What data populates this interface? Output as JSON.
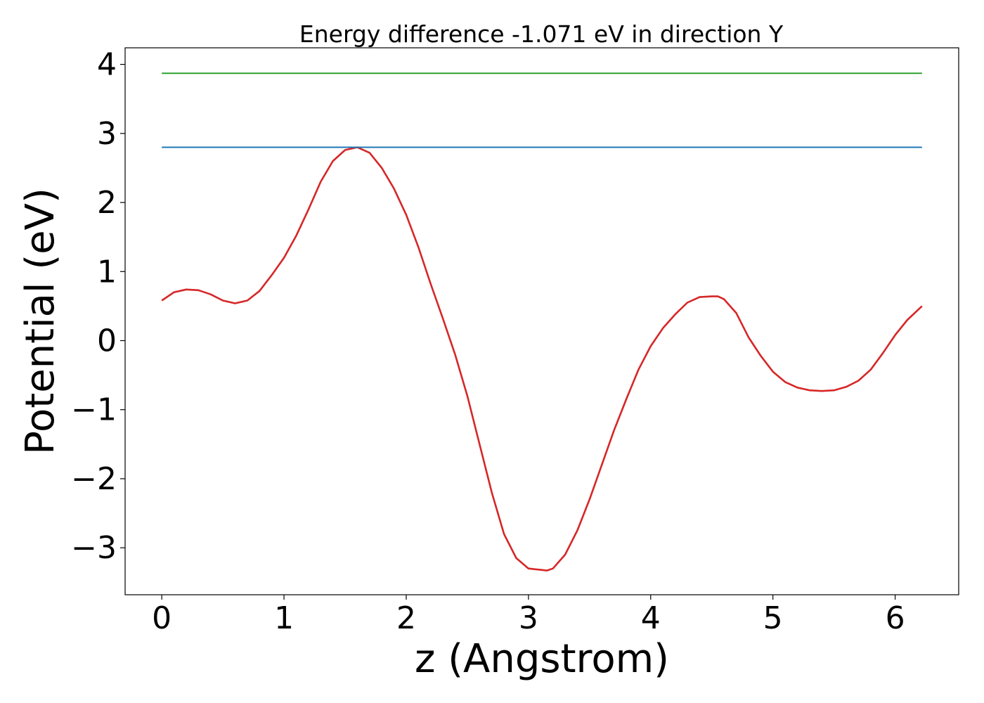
{
  "chart_data": {
    "type": "line",
    "title": "Energy difference -1.071 eV in direction Y",
    "xlabel": "z (Angstrom)",
    "ylabel": "Potential (eV)",
    "xlim": [
      -0.3,
      6.52
    ],
    "ylim": [
      -3.68,
      4.24
    ],
    "xticks": [
      0,
      1,
      2,
      3,
      4,
      5,
      6
    ],
    "xtick_labels": [
      "0",
      "1",
      "2",
      "3",
      "4",
      "5",
      "6"
    ],
    "yticks": [
      -3,
      -2,
      -1,
      0,
      1,
      2,
      3,
      4
    ],
    "ytick_labels": [
      "−3",
      "−2",
      "−1",
      "0",
      "1",
      "2",
      "3",
      "4"
    ],
    "grid": false,
    "series": [
      {
        "color": "#d62728",
        "x": [
          0.0,
          0.1,
          0.2,
          0.3,
          0.4,
          0.5,
          0.6,
          0.7,
          0.8,
          0.9,
          1.0,
          1.1,
          1.2,
          1.3,
          1.4,
          1.5,
          1.6,
          1.7,
          1.8,
          1.9,
          2.0,
          2.1,
          2.2,
          2.3,
          2.4,
          2.5,
          2.6,
          2.7,
          2.8,
          2.9,
          3.0,
          3.1,
          3.15,
          3.2,
          3.3,
          3.4,
          3.5,
          3.6,
          3.7,
          3.8,
          3.9,
          4.0,
          4.1,
          4.2,
          4.3,
          4.4,
          4.5,
          4.55,
          4.6,
          4.7,
          4.8,
          4.9,
          5.0,
          5.1,
          5.2,
          5.3,
          5.4,
          5.5,
          5.6,
          5.7,
          5.8,
          5.9,
          6.0,
          6.1,
          6.22
        ],
        "y": [
          0.58,
          0.7,
          0.74,
          0.73,
          0.67,
          0.58,
          0.54,
          0.58,
          0.72,
          0.95,
          1.2,
          1.52,
          1.9,
          2.3,
          2.6,
          2.76,
          2.8,
          2.72,
          2.5,
          2.2,
          1.82,
          1.35,
          0.82,
          0.32,
          -0.2,
          -0.8,
          -1.5,
          -2.2,
          -2.8,
          -3.15,
          -3.3,
          -3.32,
          -3.33,
          -3.3,
          -3.1,
          -2.75,
          -2.3,
          -1.8,
          -1.3,
          -0.85,
          -0.42,
          -0.08,
          0.18,
          0.38,
          0.55,
          0.63,
          0.64,
          0.64,
          0.6,
          0.4,
          0.05,
          -0.22,
          -0.45,
          -0.6,
          -0.68,
          -0.72,
          -0.73,
          -0.72,
          -0.67,
          -0.58,
          -0.42,
          -0.18,
          0.08,
          0.3,
          0.5
        ]
      },
      {
        "color": "#1f77b4",
        "x": [
          0.0,
          6.22
        ],
        "y": [
          2.8,
          2.8
        ]
      },
      {
        "color": "#2ca02c",
        "x": [
          0.0,
          6.22
        ],
        "y": [
          3.87,
          3.87
        ]
      }
    ]
  }
}
